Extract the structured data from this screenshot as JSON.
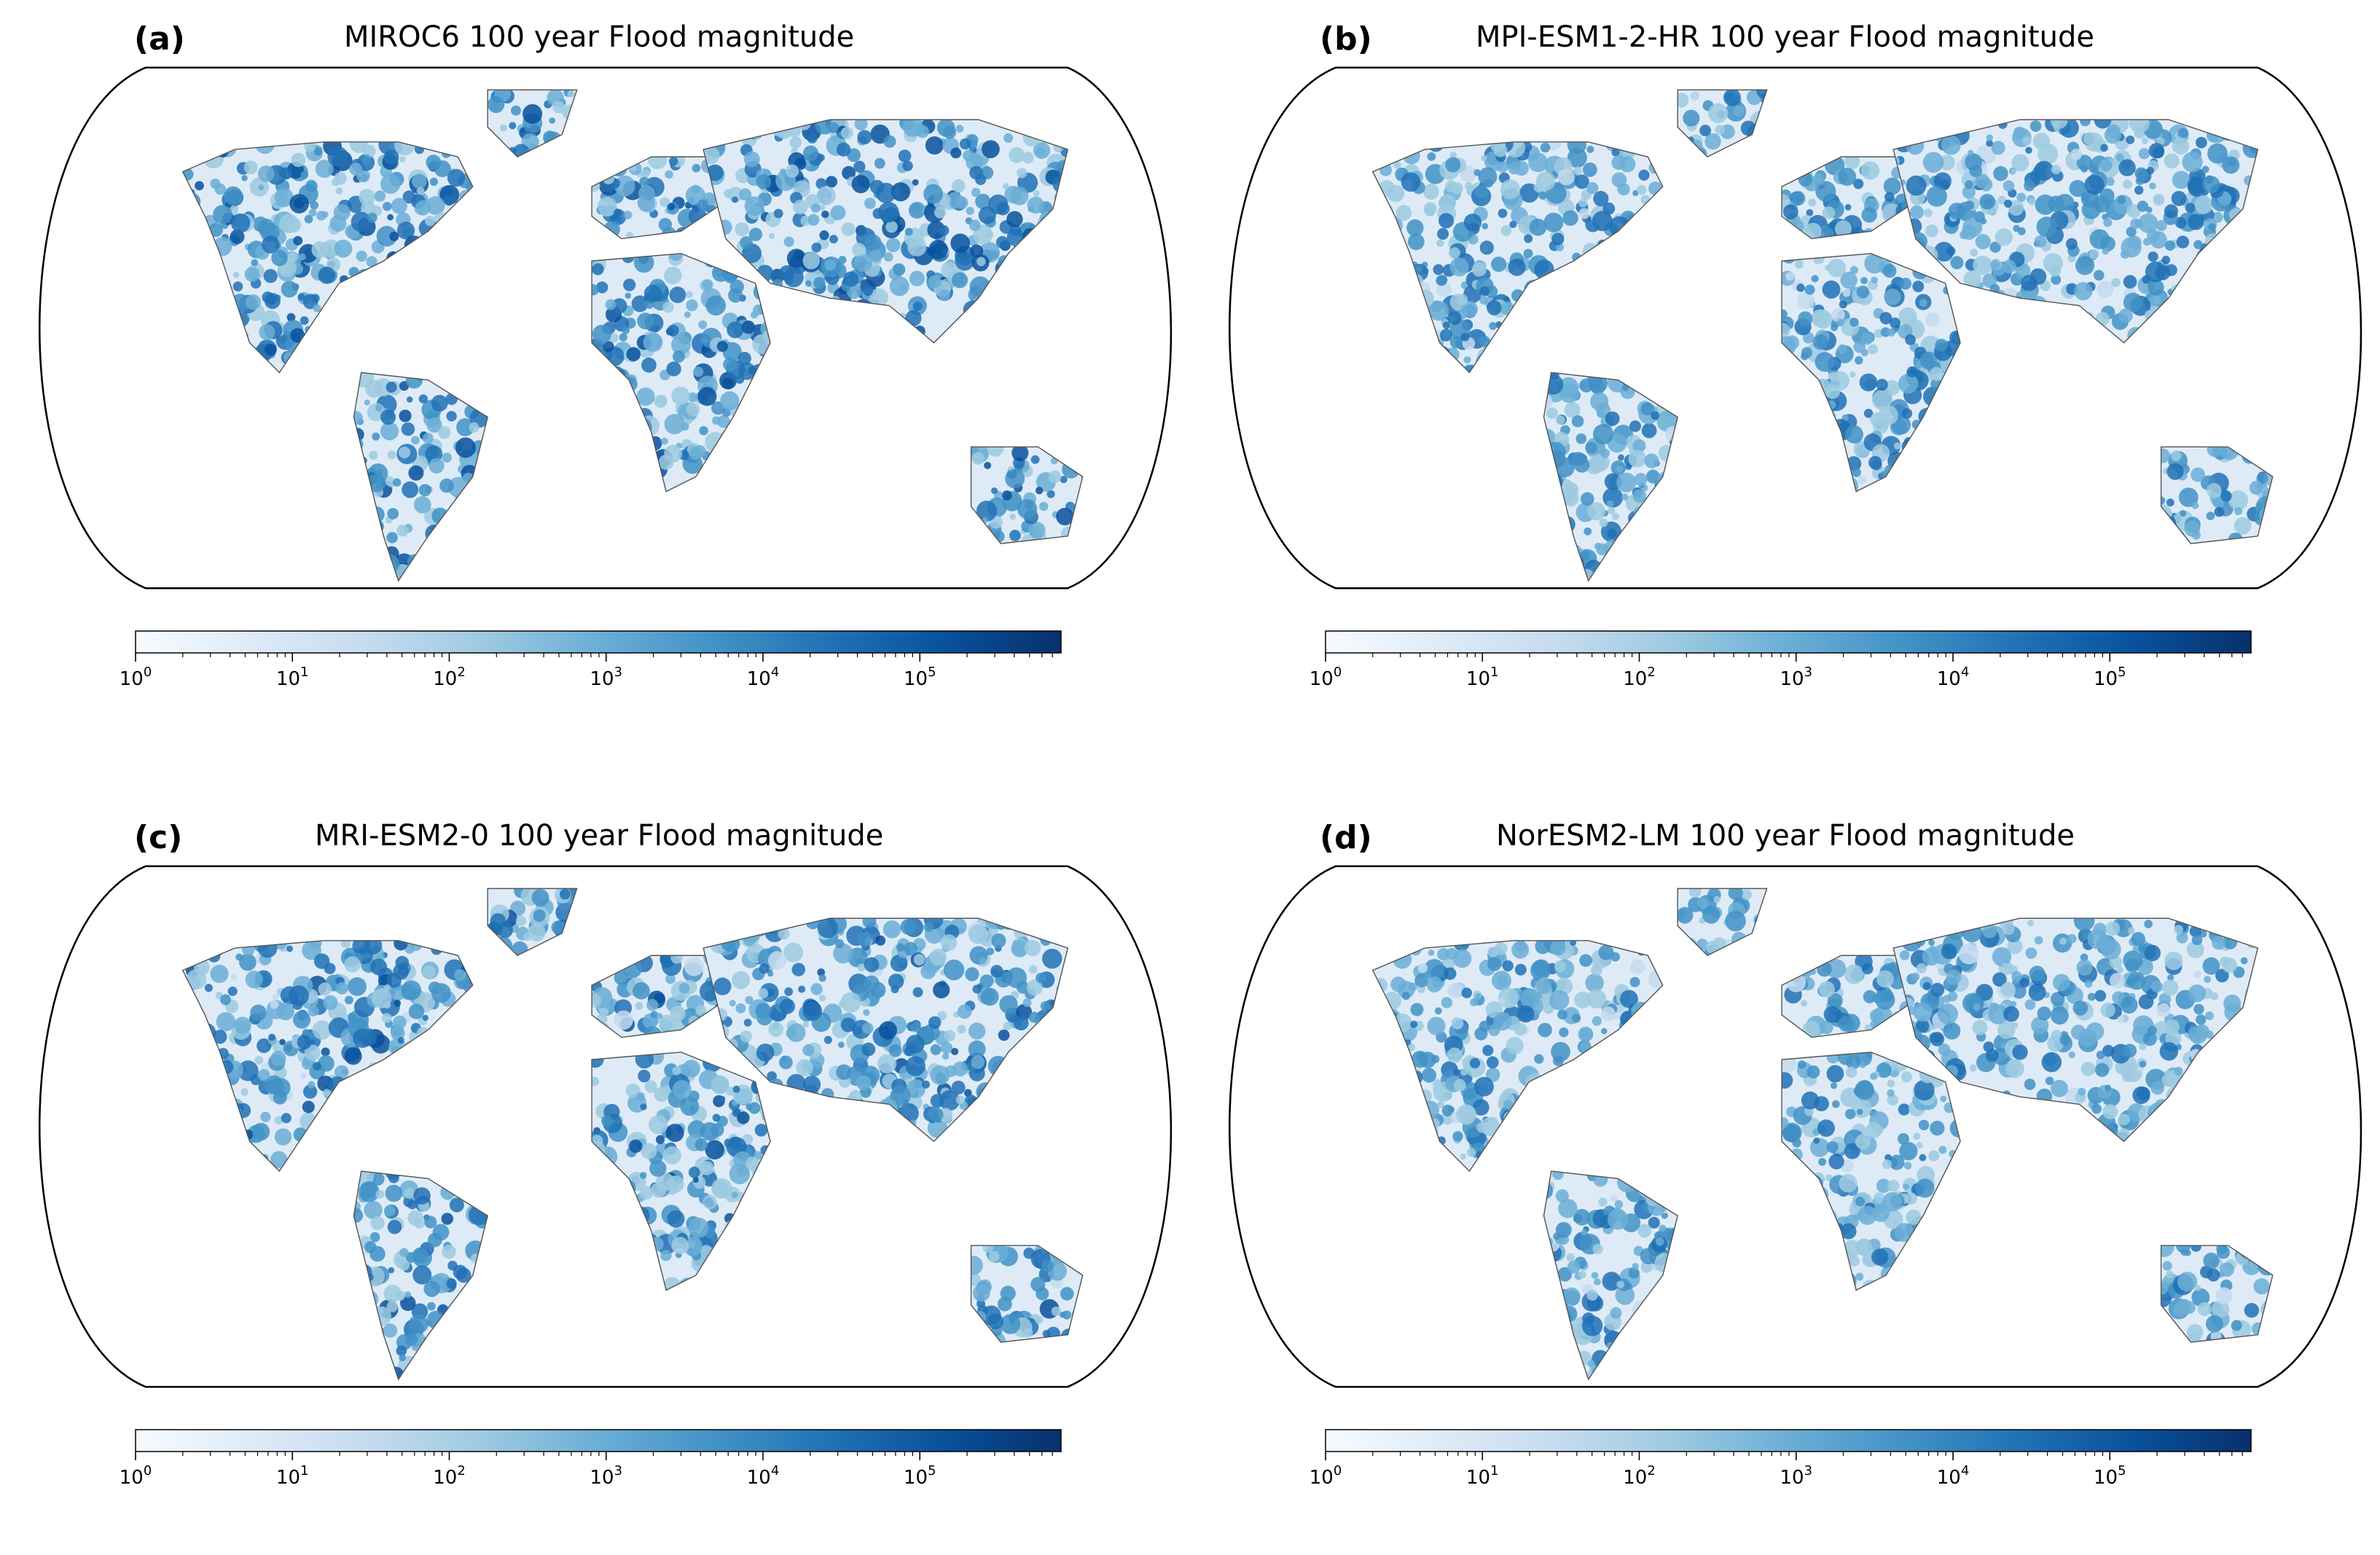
{
  "figure": {
    "colormap": {
      "name": "Blues",
      "stops": [
        "#f7fbff",
        "#deebf7",
        "#c6dbef",
        "#9ecae1",
        "#6baed6",
        "#4292c6",
        "#2171b5",
        "#08519c",
        "#08306b"
      ]
    },
    "land_outline_color": "#555555",
    "panels": [
      {
        "label": "(a)",
        "title": "MIROC6  100 year Flood magnitude",
        "intensity": 0.62,
        "colorbar": {
          "scale": "log",
          "min_exp": 0,
          "max_exp": 5.9,
          "ticks": [
            {
              "base": "10",
              "exp": "0"
            },
            {
              "base": "10",
              "exp": "1"
            },
            {
              "base": "10",
              "exp": "2"
            },
            {
              "base": "10",
              "exp": "3"
            },
            {
              "base": "10",
              "exp": "4"
            },
            {
              "base": "10",
              "exp": "5"
            }
          ]
        }
      },
      {
        "label": "(b)",
        "title": "MPI-ESM1-2-HR  100 year Flood magnitude",
        "intensity": 0.55,
        "colorbar": {
          "scale": "log",
          "min_exp": 0,
          "max_exp": 5.9,
          "ticks": [
            {
              "base": "10",
              "exp": "0"
            },
            {
              "base": "10",
              "exp": "1"
            },
            {
              "base": "10",
              "exp": "2"
            },
            {
              "base": "10",
              "exp": "3"
            },
            {
              "base": "10",
              "exp": "4"
            },
            {
              "base": "10",
              "exp": "5"
            }
          ]
        }
      },
      {
        "label": "(c)",
        "title": "MRI-ESM2-0  100 year Flood magnitude",
        "intensity": 0.58,
        "colorbar": {
          "scale": "log",
          "min_exp": 0,
          "max_exp": 5.9,
          "ticks": [
            {
              "base": "10",
              "exp": "0"
            },
            {
              "base": "10",
              "exp": "1"
            },
            {
              "base": "10",
              "exp": "2"
            },
            {
              "base": "10",
              "exp": "3"
            },
            {
              "base": "10",
              "exp": "4"
            },
            {
              "base": "10",
              "exp": "5"
            }
          ]
        }
      },
      {
        "label": "(d)",
        "title": "NorESM2-LM  100 year Flood magnitude",
        "intensity": 0.5,
        "colorbar": {
          "scale": "log",
          "min_exp": 0,
          "max_exp": 5.9,
          "ticks": [
            {
              "base": "10",
              "exp": "0"
            },
            {
              "base": "10",
              "exp": "1"
            },
            {
              "base": "10",
              "exp": "2"
            },
            {
              "base": "10",
              "exp": "3"
            },
            {
              "base": "10",
              "exp": "4"
            },
            {
              "base": "10",
              "exp": "5"
            }
          ]
        }
      }
    ]
  }
}
